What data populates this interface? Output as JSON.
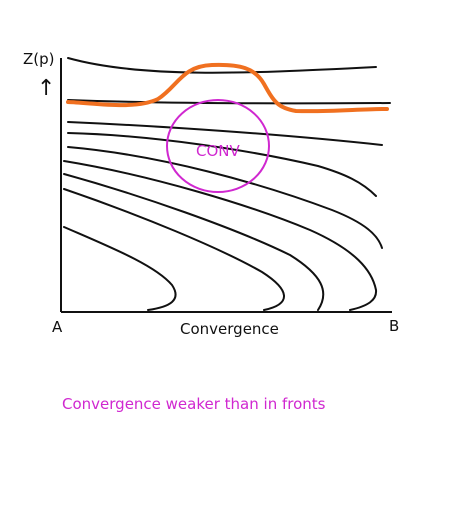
{
  "labels": {
    "y_axis": "Z(p)",
    "y_arrow": "↑",
    "point_a": "A",
    "point_b": "B",
    "x_axis": "Convergence",
    "circle_label": "CONV"
  },
  "caption": "Convergence weaker than in fronts",
  "colors": {
    "axes": "#111111",
    "isentropes": "#111111",
    "tropopause": "#f07020",
    "convergence": "#d028d0"
  }
}
